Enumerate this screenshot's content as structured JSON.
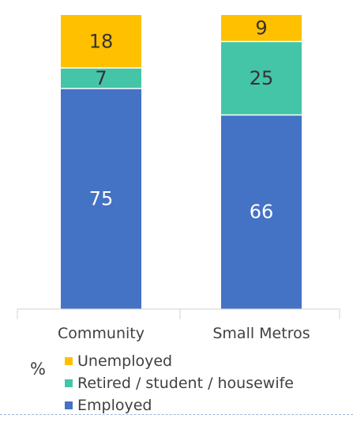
{
  "chart_data": {
    "type": "bar",
    "stacked": true,
    "unit_label": "%",
    "categories": [
      "Community",
      "Small Metros"
    ],
    "series": [
      {
        "name": "Employed",
        "values": [
          75,
          66
        ],
        "color": "#4472c4",
        "label_color": "#ffffff"
      },
      {
        "name": "Retired / student / housewife",
        "values": [
          7,
          25
        ],
        "color": "#44c5a8",
        "label_color": "#333333"
      },
      {
        "name": "Unemployed",
        "values": [
          18,
          9
        ],
        "color": "#ffc000",
        "label_color": "#333333"
      }
    ],
    "ylim": [
      0,
      100
    ],
    "legend": {
      "placement": "bottom",
      "order": [
        "Unemployed",
        "Retired / student / housewife",
        "Employed"
      ]
    },
    "grid": false
  }
}
